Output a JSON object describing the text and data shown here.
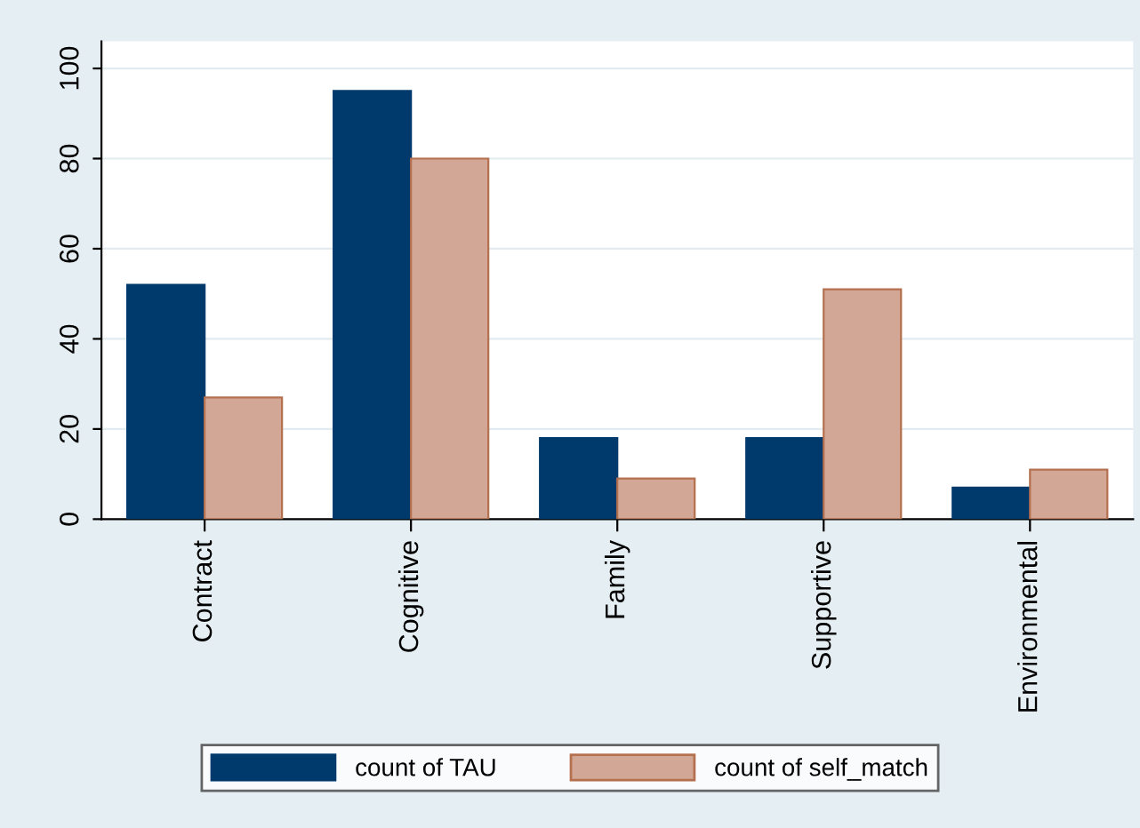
{
  "chart_data": {
    "type": "bar",
    "categories": [
      "Contract",
      "Cognitive",
      "Family",
      "Supportive",
      "Environmental"
    ],
    "series": [
      {
        "name": "count of TAU",
        "color": "#003a6c",
        "values": [
          52,
          95,
          18,
          18,
          7
        ]
      },
      {
        "name": "count of self_match",
        "color": "#d3a796",
        "values": [
          27,
          80,
          9,
          51,
          11
        ]
      }
    ],
    "ylim": [
      0,
      106
    ],
    "yticks": [
      0,
      20,
      40,
      60,
      80,
      100
    ],
    "grid": "y",
    "legend": "bottom"
  }
}
